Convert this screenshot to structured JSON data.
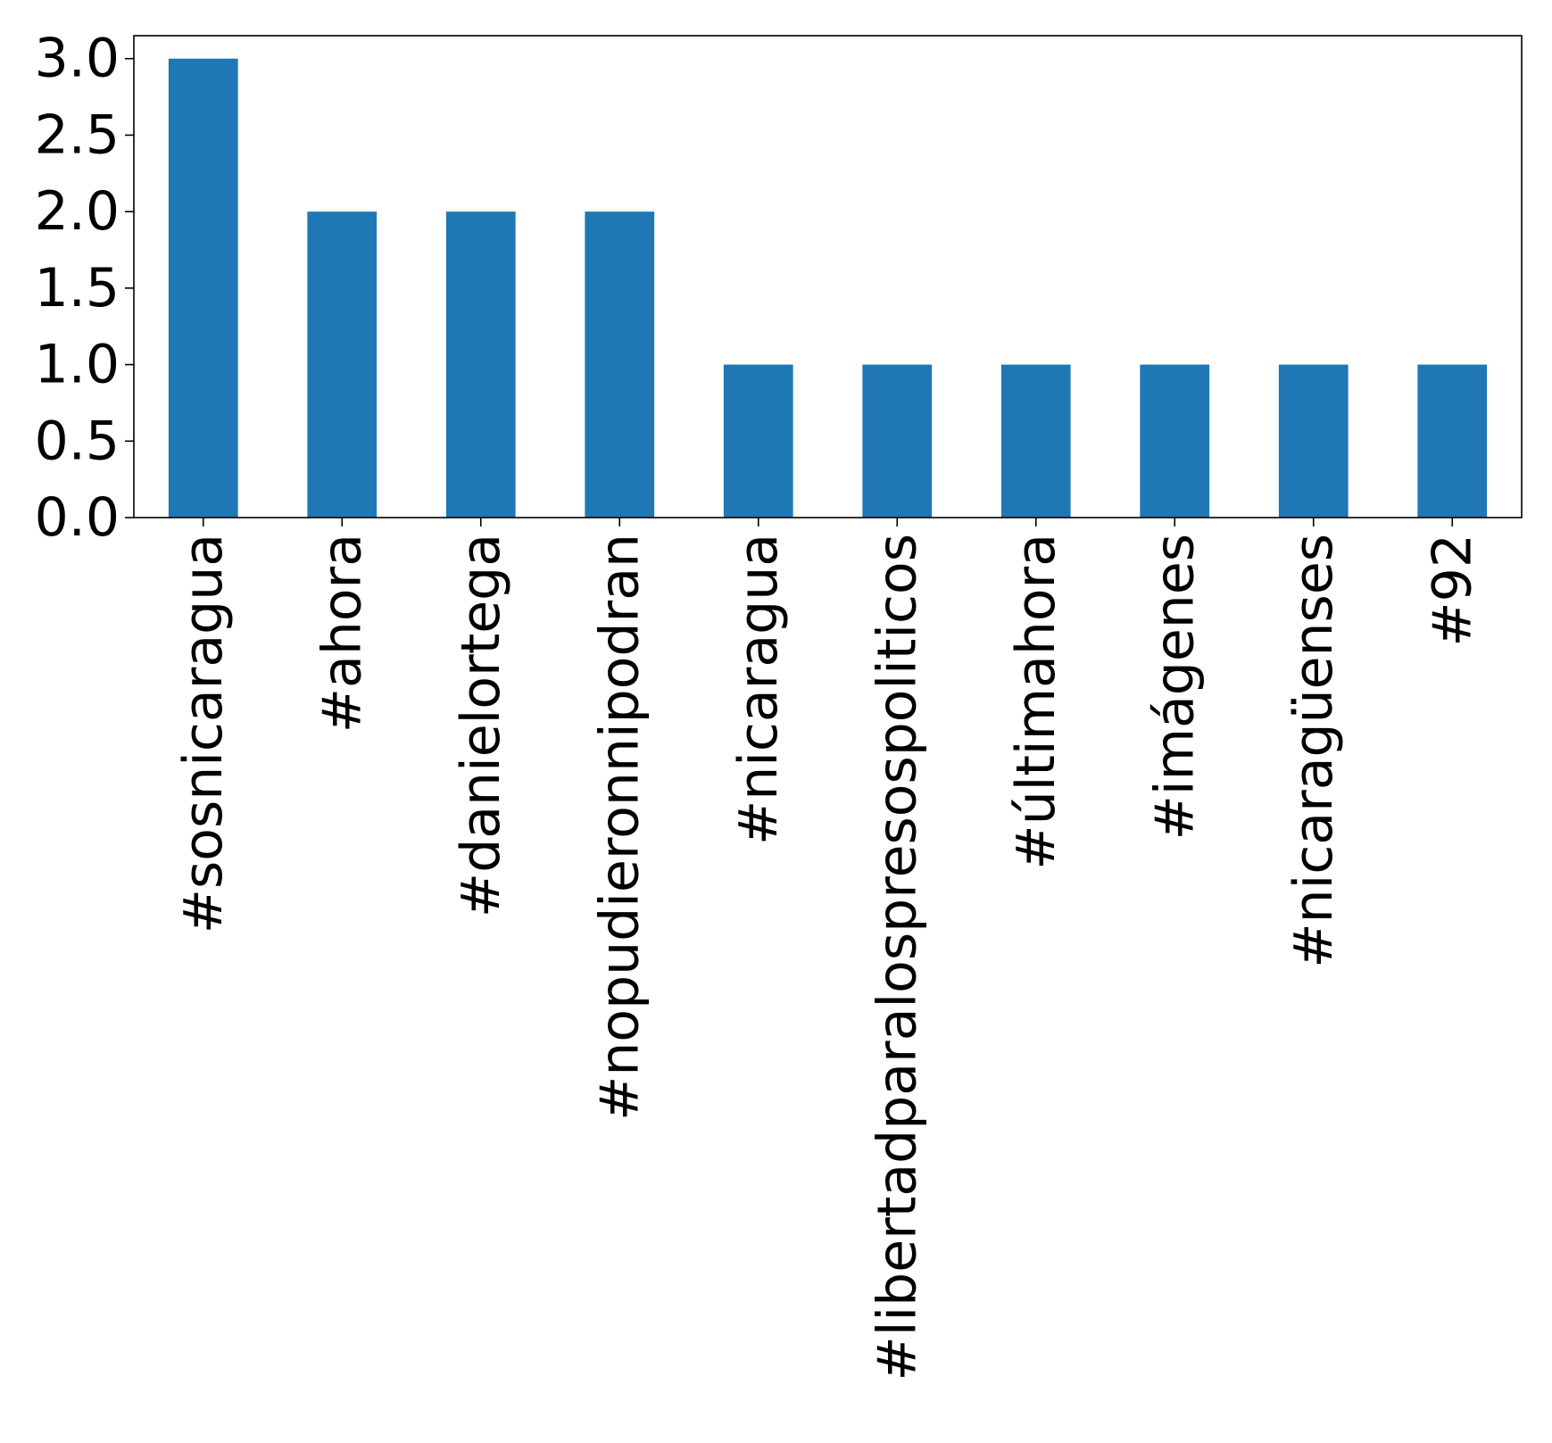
{
  "chart_data": {
    "type": "bar",
    "title": "",
    "xlabel": "",
    "ylabel": "",
    "categories": [
      "#sosnicaragua",
      "#ahora",
      "#danielortega",
      "#nopudieronnipodran",
      "#nicaragua",
      "#libertadparalospresospoliticos",
      "#últimahora",
      "#imágenes",
      "#nicaragüenses",
      "#92"
    ],
    "values": [
      3,
      2,
      2,
      2,
      1,
      1,
      1,
      1,
      1,
      1
    ],
    "ylim": [
      0,
      3.15
    ],
    "yticks": [
      0.0,
      0.5,
      1.0,
      1.5,
      2.0,
      2.5,
      3.0
    ],
    "ytick_labels": [
      "0.0",
      "0.5",
      "1.0",
      "1.5",
      "2.0",
      "2.5",
      "3.0"
    ],
    "bar_color": "#1f77b4",
    "grid": false,
    "legend": "none"
  }
}
